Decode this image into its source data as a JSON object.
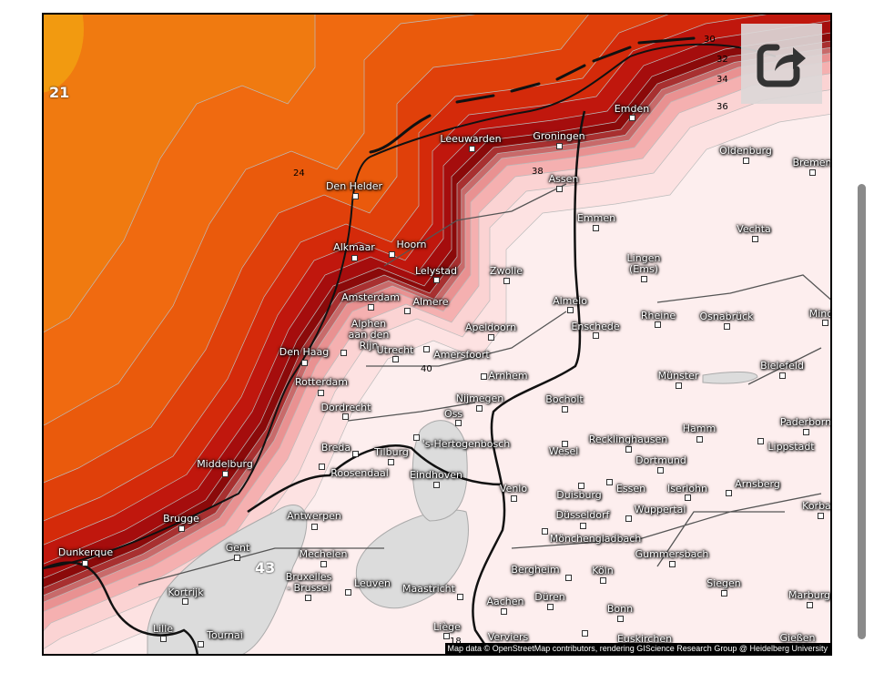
{
  "map": {
    "attribution": "Map data © OpenStreetMap contributors, rendering GIScience Research Group @ Heidelberg University",
    "contour_labels": [
      "21",
      "24",
      "30",
      "32",
      "34",
      "36",
      "38",
      "40",
      "43",
      "18"
    ],
    "colors": {
      "sea_orange": "#f07a10",
      "coast_dark_red": "#8b0a0a",
      "land_pale": "#fdeeee",
      "below_range": "#dcdcdc"
    },
    "cities": [
      "Den Helder",
      "Leeuwarden",
      "Groningen",
      "Emden",
      "Assen",
      "Emmen",
      "Oldenburg",
      "Bremen",
      "Vechta",
      "Alkmaar",
      "Hoorn",
      "Lelystad",
      "Zwolle",
      "Lingen\n(Ems)",
      "Almelo",
      "Amsterdam",
      "Almere",
      "Rheine",
      "Osnabrück",
      "Mind",
      "Apeldoorn",
      "Enschede",
      "Alphen\naan den\nRijn",
      "Den Haag",
      "Utrecht",
      "Amersfoort",
      "Arnhem",
      "Münster",
      "Bielefeld",
      "Rotterdam",
      "Nijmegen",
      "Bocholt",
      "Dordrecht",
      "Oss",
      "Paderborn",
      "Hamm",
      "Lippstadt",
      "Recklinghausen",
      "'s-Hertogenbosch",
      "Wesel",
      "Breda",
      "Tilburg",
      "Dortmund",
      "Middelburg",
      "Roosendaal",
      "Eindhoven",
      "Venlo",
      "Duisburg",
      "Essen",
      "Iserlohn",
      "Arnsberg",
      "Korbac",
      "Brugge",
      "Antwerpen",
      "Düsseldorf",
      "Wuppertal",
      "Mönchengladbach",
      "Gent",
      "Dunkerque",
      "Gummersbach",
      "Mechelen",
      "Bruxelles\n- Brussel",
      "Leuven",
      "Maastricht",
      "Bergheim",
      "Köln",
      "Siegen",
      "Kortrijk",
      "Aachen",
      "Düren",
      "Bonn",
      "Marburg",
      "Lille",
      "Tournai",
      "Liège",
      "Verviers",
      "Euskirchen",
      "Gießen"
    ]
  },
  "toolbar": {
    "share_icon": "share-icon"
  }
}
